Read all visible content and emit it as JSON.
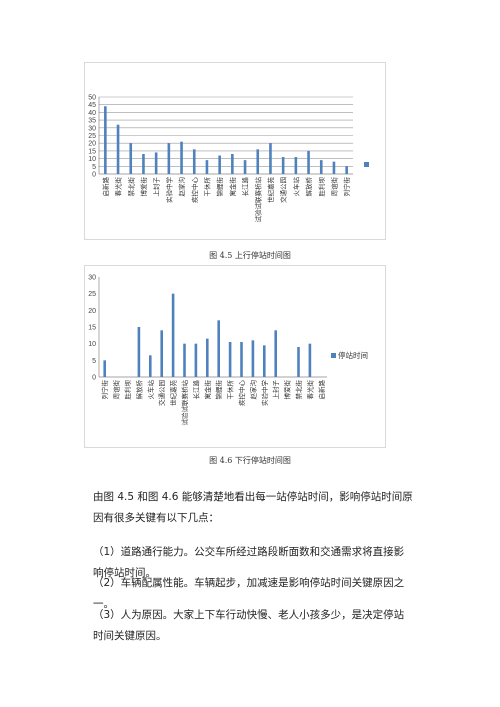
{
  "doc": {
    "caption1": "图 4.5 上行停站时间图",
    "caption2": "图 4.6 下行停站时间图",
    "paragraph1": "由图 4.5 和图 4.6 能够清楚地看出每一站停站时间，影响停站时间原因有很多关键有以下几点：",
    "item1": "（1）道路通行能力。公交车所经过路段断面数和交通需求将直接影响停站时间。",
    "item2": "（2）车辆配属性能。车辆起步，加减速是影响停站时间关键原因之一。",
    "item3": "（3）人为原因。大家上下车行动快慢、老人小孩多少，是决定停站时间关键原因。"
  },
  "chart_data": [
    {
      "type": "bar",
      "categories": [
        "启新路",
        "春光街",
        "禁北街",
        "博爱街",
        "上封子",
        "实验中学",
        "赵家沟",
        "疾控中心",
        "干休所",
        "锦鲤街",
        "寓金街",
        "长江路",
        "试验试联赛桥站",
        "世纪嘉苑",
        "交通公园",
        "火车站",
        "解放桥",
        "胜利坝",
        "周谊街",
        "列宁街"
      ],
      "values": [
        44,
        32,
        20,
        13,
        14,
        20,
        21,
        16,
        9,
        12,
        13,
        9,
        16,
        20,
        11,
        11,
        15,
        9,
        8,
        5
      ],
      "ylim": [
        0,
        50
      ],
      "yticks": [
        0,
        5,
        10,
        15,
        20,
        25,
        30,
        35,
        40,
        45,
        50
      ],
      "grid": true,
      "legend": "right",
      "legend_label": "",
      "color": "#4f81bd"
    },
    {
      "type": "bar",
      "categories": [
        "列宁街",
        "周谊街",
        "胜利坝",
        "解放桥",
        "火车站",
        "交通公园",
        "世纪嘉苑",
        "试验试联赛桥站",
        "长江路",
        "寓金街",
        "锦鲤街",
        "干休所",
        "疾控中心",
        "赵家沟",
        "实验中学",
        "上封子",
        "博爱街",
        "禁北街",
        "春光街",
        "启新路"
      ],
      "values": [
        5,
        0,
        0,
        15,
        6.5,
        14,
        25,
        10,
        10,
        11.5,
        17,
        10.5,
        10.5,
        11,
        9.5,
        14,
        0,
        9,
        10,
        0
      ],
      "ylim": [
        0,
        30
      ],
      "yticks": [
        0,
        5,
        10,
        15,
        20,
        25,
        30
      ],
      "grid": false,
      "legend": "right",
      "legend_label": "停站时间",
      "color": "#4f81bd"
    }
  ]
}
